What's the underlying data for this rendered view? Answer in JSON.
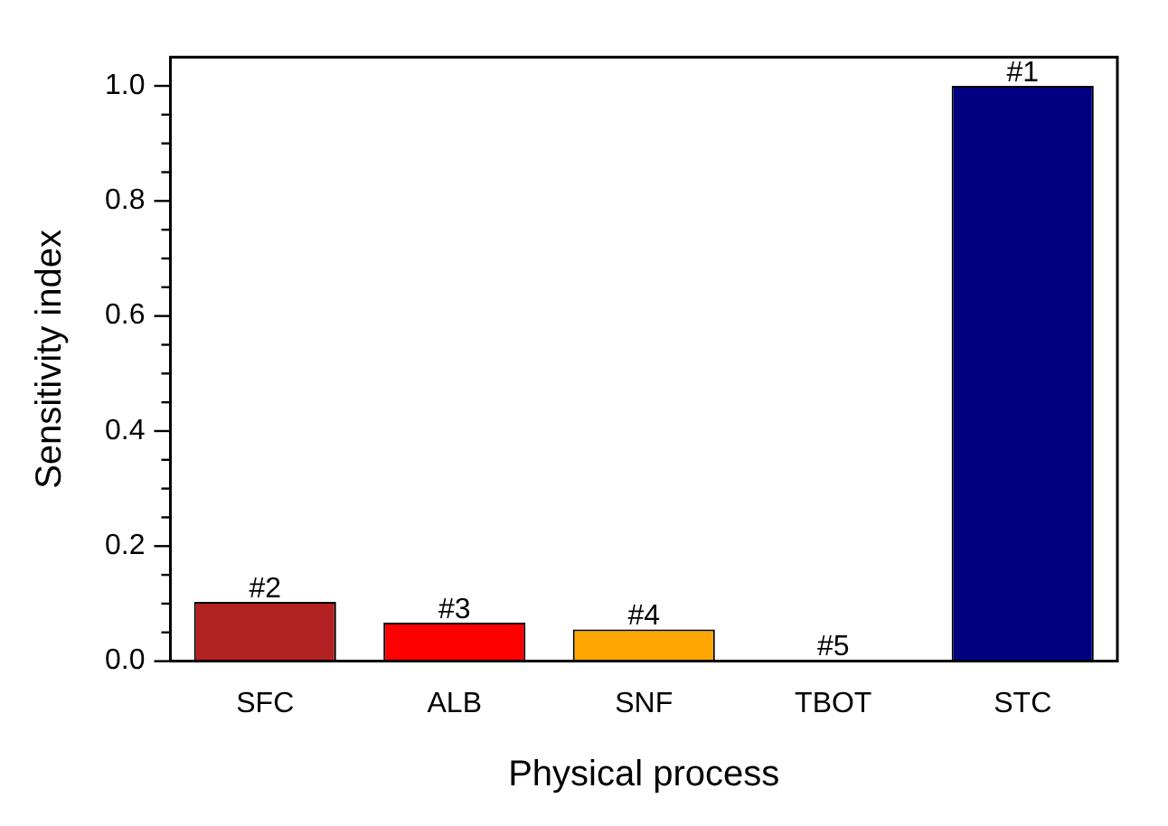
{
  "chart_data": {
    "type": "bar",
    "xlabel": "Physical process",
    "ylabel": "Sensitivity index",
    "categories": [
      "SFC",
      "ALB",
      "SNF",
      "TBOT",
      "STC"
    ],
    "values": [
      0.103,
      0.067,
      0.055,
      0.002,
      1.0
    ],
    "colors": [
      "#b22222",
      "#ff0000",
      "#ffa500",
      "#d3d3d3",
      "#000080"
    ],
    "annotations": [
      {
        "text": "#2",
        "x": "SFC",
        "y": 0.103
      },
      {
        "text": "#3",
        "x": "ALB",
        "y": 0.067
      },
      {
        "text": "#4",
        "x": "SNF",
        "y": 0.055
      },
      {
        "text": "#5",
        "x": "TBOT",
        "y": 0.002
      },
      {
        "text": "#1",
        "x": "STC",
        "y": 1.0
      }
    ],
    "ylim": [
      0,
      1.05
    ],
    "yticks": [
      {
        "value": 0,
        "label": "0.0"
      },
      {
        "value": 0.05,
        "label": null
      },
      {
        "value": 0.1,
        "label": null
      },
      {
        "value": 0.15,
        "label": null
      },
      {
        "value": 0.2,
        "label": "0.2"
      },
      {
        "value": 0.25,
        "label": null
      },
      {
        "value": 0.3,
        "label": null
      },
      {
        "value": 0.35,
        "label": null
      },
      {
        "value": 0.4,
        "label": "0.4"
      },
      {
        "value": 0.45,
        "label": null
      },
      {
        "value": 0.5,
        "label": null
      },
      {
        "value": 0.55,
        "label": null
      },
      {
        "value": 0.6,
        "label": "0.6"
      },
      {
        "value": 0.65,
        "label": null
      },
      {
        "value": 0.7,
        "label": null
      },
      {
        "value": 0.75,
        "label": null
      },
      {
        "value": 0.8,
        "label": "0.8"
      },
      {
        "value": 0.85,
        "label": null
      },
      {
        "value": 0.9,
        "label": null
      },
      {
        "value": 0.95,
        "label": null
      },
      {
        "value": 1.0,
        "label": "1.0"
      }
    ],
    "grid": false,
    "legend": false
  }
}
